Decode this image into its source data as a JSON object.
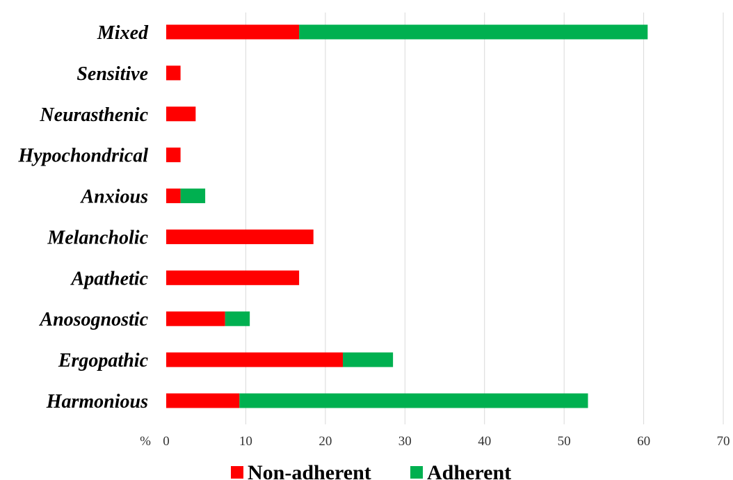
{
  "chart_data": {
    "type": "bar",
    "orientation": "horizontal",
    "stacked": true,
    "categories": [
      "Mixed",
      "Sensitive",
      "Neurasthenic",
      "Hypochondrical",
      "Anxious",
      "Melancholic",
      "Apathetic",
      "Anosognostic",
      "Ergopathic",
      "Harmonious"
    ],
    "series": [
      {
        "name": "Non-adherent",
        "color": "#ff0000",
        "values": [
          16.7,
          1.8,
          3.7,
          1.8,
          1.8,
          18.5,
          16.7,
          7.4,
          22.2,
          9.2
        ]
      },
      {
        "name": "Adherent",
        "color": "#00b050",
        "values": [
          43.8,
          0,
          0,
          0,
          3.1,
          0,
          0,
          3.1,
          6.3,
          43.8
        ]
      }
    ],
    "x_unit": "%",
    "xlim": [
      0,
      70
    ],
    "x_ticks": [
      "0",
      "10",
      "20",
      "30",
      "40",
      "50",
      "60",
      "70"
    ],
    "grid": "vertical",
    "legend_position": "bottom"
  }
}
